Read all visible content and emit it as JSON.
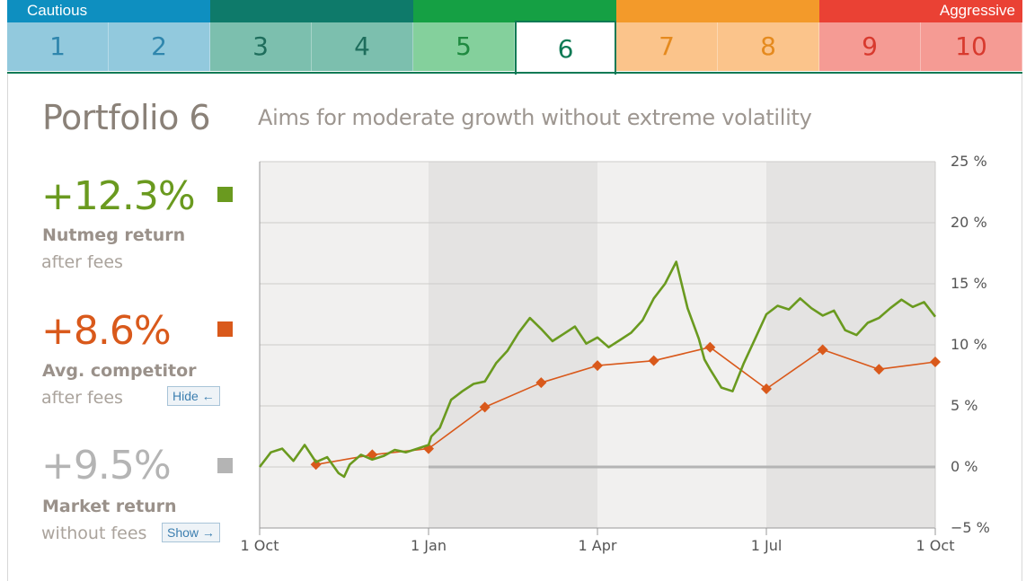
{
  "risk_scale": {
    "cautious_label": "Cautious",
    "aggressive_label": "Aggressive",
    "tabs": [
      {
        "label": "1",
        "color": "#6cb4d1",
        "bg": "#92c9dd",
        "fg": "#2f86ad"
      },
      {
        "label": "2",
        "color": "#6cb4d1",
        "bg": "#92c9dd",
        "fg": "#2f86ad"
      },
      {
        "label": "3",
        "color": "#2c8a77",
        "bg": "#7cbfae",
        "fg": "#1e6d5c"
      },
      {
        "label": "4",
        "color": "#2c8a77",
        "bg": "#7cbfae",
        "fg": "#1e6d5c"
      },
      {
        "label": "5",
        "color": "#3aaa5e",
        "bg": "#84d09c",
        "fg": "#1f8a40"
      },
      {
        "label": "6",
        "color": "#3aaa5e",
        "bg": "#ffffff",
        "fg": "#0e7a55"
      },
      {
        "label": "7",
        "color": "#f39a2a",
        "bg": "#fbc48b",
        "fg": "#e58a1e"
      },
      {
        "label": "8",
        "color": "#f39a2a",
        "bg": "#fbc48b",
        "fg": "#e58a1e"
      },
      {
        "label": "9",
        "color": "#ea4134",
        "bg": "#f59b94",
        "fg": "#d83a2e"
      },
      {
        "label": "10",
        "color": "#ea4134",
        "bg": "#f59b94",
        "fg": "#d83a2e"
      }
    ],
    "active_index": 5,
    "band_colors": [
      "#0e8fc0",
      "#0e7a6a",
      "#15a044",
      "#f39a2a",
      "#ea4134"
    ]
  },
  "portfolio": {
    "title": "Portfolio 6",
    "subtitle": "Aims for moderate growth without extreme volatility"
  },
  "stats": {
    "nutmeg": {
      "value": "+12.3%",
      "label": "Nutmeg return",
      "sub": "after fees",
      "color": "#6a9a1f"
    },
    "competitor": {
      "value": "+8.6%",
      "label": "Avg. competitor",
      "sub": "after fees",
      "color": "#d9591b",
      "button": "Hide ←"
    },
    "market": {
      "value": "+9.5%",
      "label": "Market return",
      "sub": "without fees",
      "color": "#b4b4b4",
      "button": "Show →"
    }
  },
  "chart_data": {
    "type": "line",
    "x_ticks": [
      "1 Oct",
      "1 Jan",
      "1 Apr",
      "1 Jul",
      "1 Oct"
    ],
    "x_tick_months": [
      0,
      3,
      6,
      9,
      12
    ],
    "y_ticks": [
      "25 %",
      "20 %",
      "15 %",
      "10 %",
      "5 %",
      "0 %",
      "−5 %"
    ],
    "y_tick_values": [
      25,
      20,
      15,
      10,
      5,
      0,
      -5
    ],
    "ylim": [
      -5,
      25
    ],
    "xlim_months": [
      0,
      12
    ],
    "grid": true,
    "series": [
      {
        "color": "#6a9a1f",
        "x_months": [
          0,
          0.2,
          0.4,
          0.6,
          0.8,
          1.0,
          1.2,
          1.4,
          1.5,
          1.6,
          1.8,
          2.0,
          2.2,
          2.4,
          2.6,
          2.8,
          3.0,
          3.05,
          3.2,
          3.4,
          3.6,
          3.8,
          4.0,
          4.2,
          4.4,
          4.6,
          4.8,
          5.0,
          5.2,
          5.4,
          5.6,
          5.8,
          6.0,
          6.2,
          6.4,
          6.6,
          6.8,
          7.0,
          7.2,
          7.4,
          7.6,
          7.8,
          7.9,
          8.0,
          8.2,
          8.4,
          8.6,
          8.8,
          9.0,
          9.2,
          9.4,
          9.6,
          9.8,
          10.0,
          10.2,
          10.4,
          10.6,
          10.8,
          11.0,
          11.2,
          11.4,
          11.6,
          11.8,
          12.0
        ],
        "values": [
          0,
          1.2,
          1.5,
          0.5,
          1.8,
          0.4,
          0.8,
          -0.5,
          -0.8,
          0.2,
          1.0,
          0.6,
          0.9,
          1.4,
          1.2,
          1.5,
          1.8,
          2.5,
          3.2,
          5.5,
          6.2,
          6.8,
          7.0,
          8.5,
          9.5,
          11.0,
          12.2,
          11.3,
          10.3,
          10.9,
          11.5,
          10.1,
          10.6,
          9.8,
          10.4,
          11.0,
          12.0,
          13.8,
          15.0,
          16.8,
          13.0,
          10.5,
          8.8,
          8.0,
          6.5,
          6.2,
          8.5,
          10.5,
          12.5,
          13.2,
          12.9,
          13.8,
          13.0,
          12.4,
          12.8,
          11.2,
          10.8,
          11.8,
          12.2,
          13.0,
          13.7,
          13.1,
          13.5,
          12.3
        ]
      },
      {
        "color": "#d9591b",
        "x_months": [
          1.0,
          2.0,
          3.0,
          4.0,
          5.0,
          6.0,
          7.0,
          8.0,
          9.0,
          10.0,
          11.0,
          12.0
        ],
        "values": [
          0.2,
          1.0,
          1.5,
          4.9,
          6.9,
          8.3,
          8.7,
          9.8,
          6.4,
          9.6,
          8.0,
          8.6
        ]
      },
      {
        "color": "#b4b4b4",
        "x_months": [
          3.0,
          6.0,
          9.0,
          12.0
        ],
        "values": [
          0,
          0,
          0,
          0
        ]
      }
    ]
  }
}
